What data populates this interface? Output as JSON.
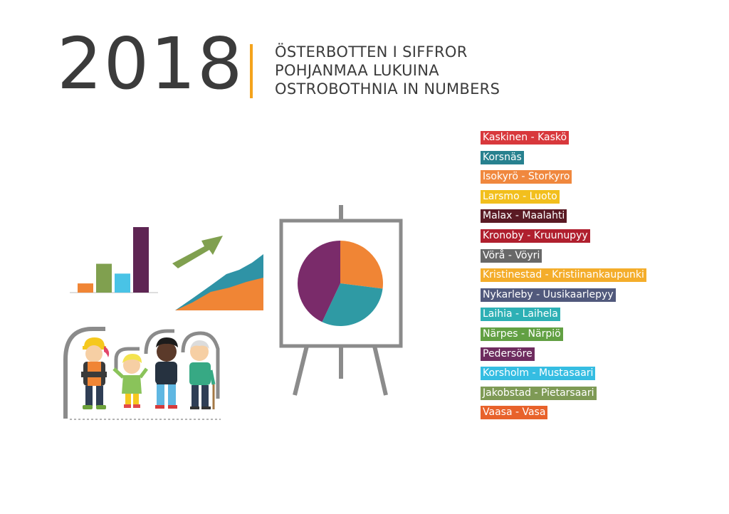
{
  "header": {
    "year": "2018",
    "title_sv": "ÖSTERBOTTEN I SIFFROR",
    "title_fi": "POHJANMAA LUKUINA",
    "title_en": "OSTROBOTHNIA IN NUMBERS",
    "accent_color": "#f4a31c"
  },
  "legend": {
    "items": [
      {
        "label": "Kaskinen - Kaskö",
        "color": "#d8383c"
      },
      {
        "label": "Korsnäs",
        "color": "#27818f"
      },
      {
        "label": "Isokyrö - Storkyro",
        "color": "#f0883e"
      },
      {
        "label": "Larsmo - Luoto",
        "color": "#f2bf1d"
      },
      {
        "label": "Malax - Maalahti",
        "color": "#5a1a24"
      },
      {
        "label": "Kronoby - Kruunupyy",
        "color": "#b01f2e"
      },
      {
        "label": "Vörå - Vöyri",
        "color": "#686868"
      },
      {
        "label": "Kristinestad - Kristiinankaupunki",
        "color": "#f4ad2b"
      },
      {
        "label": "Nykarleby - Uusikaarlepyy",
        "color": "#51597c"
      },
      {
        "label": "Laihia - Laihela",
        "color": "#2db0b5"
      },
      {
        "label": "Närpes - Närpiö",
        "color": "#62a043"
      },
      {
        "label": "Pedersöre",
        "color": "#6e2c5f"
      },
      {
        "label": "Korsholm - Mustasaari",
        "color": "#35bde2"
      },
      {
        "label": "Jakobstad - Pietarsaari",
        "color": "#7e9a55"
      },
      {
        "label": "Vaasa - Vasa",
        "color": "#e8622b"
      }
    ]
  },
  "illustration": {
    "bar_icon_colors": [
      "#f08535",
      "#80a04f",
      "#49c3e6",
      "#5e2553"
    ],
    "bar_icon_levels": [
      0.14,
      0.44,
      0.29,
      1.0
    ],
    "pie_icon_shares": [
      0.27,
      0.3,
      0.43
    ],
    "pie_icon_colors": [
      "#f08535",
      "#2f9aa4",
      "#7a2b6a"
    ],
    "area_icon_colors": [
      "#2f93a6",
      "#f08535"
    ],
    "arrow_color": "#80a04f",
    "easel_color": "#8b8b8b"
  }
}
